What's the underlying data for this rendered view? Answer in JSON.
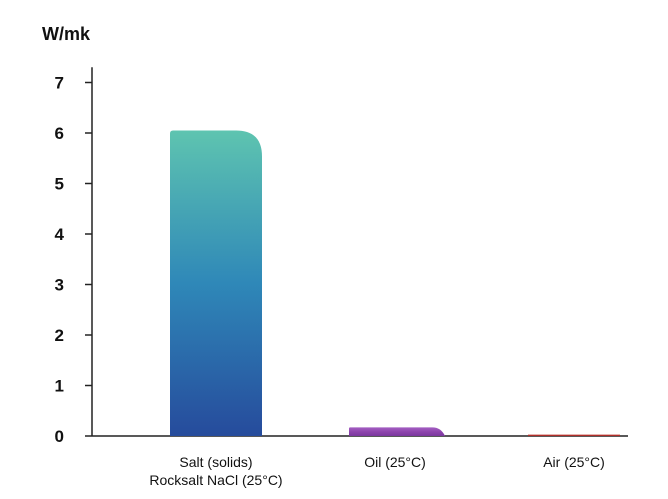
{
  "chart_data": {
    "type": "bar",
    "ylabel": "W/mk",
    "ylim": [
      0,
      7.5
    ],
    "yticks": [
      0,
      1,
      2,
      3,
      4,
      5,
      6,
      7
    ],
    "grid": false,
    "legend": "none",
    "categories": [
      [
        "Salt (solids)",
        "Rocksalt NaCl (25°C)"
      ],
      [
        "Oil (25°C)"
      ],
      [
        "Air (25°C)"
      ]
    ],
    "values": [
      6.05,
      0.17,
      0.026
    ],
    "colors": [
      {
        "top": "#5ec4b0",
        "mid": "#2f88b8",
        "bottom": "#264b9c"
      },
      {
        "top": "#a35fc3",
        "mid": "#8e44ad",
        "bottom": "#7a379e"
      },
      {
        "top": "#c0392b",
        "mid": "#b3302a",
        "bottom": "#a52a2a"
      }
    ]
  }
}
